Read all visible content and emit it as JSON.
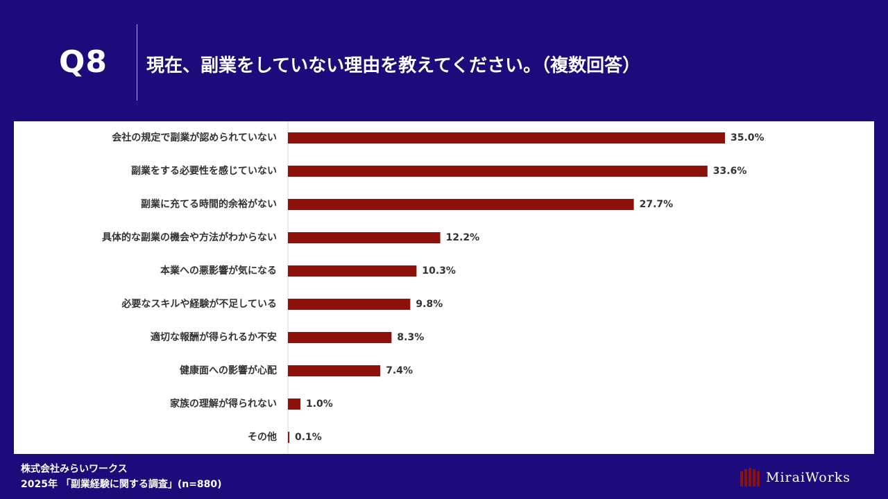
{
  "header": {
    "question_number": "Q8",
    "question_text": "現在、副業をしていない理由を教えてください。（複数回答）"
  },
  "chart_data": {
    "type": "bar",
    "orientation": "horizontal",
    "categories": [
      "会社の規定で副業が認められていない",
      "副業をする必要性を感じていない",
      "副業に充てる時間的余裕がない",
      "具体的な副業の機会や方法がわからない",
      "本業への悪影響が気になる",
      "必要なスキルや経験が不足している",
      "適切な報酬が得られるか不安",
      "健康面への影響が心配",
      "家族の理解が得られない",
      "その他"
    ],
    "values": [
      35.0,
      33.6,
      27.7,
      12.2,
      10.3,
      9.8,
      8.3,
      7.4,
      1.0,
      0.1
    ],
    "value_labels": [
      "35.0%",
      "33.6%",
      "27.7%",
      "12.2%",
      "10.3%",
      "9.8%",
      "8.3%",
      "7.4%",
      "1.0%",
      "0.1%"
    ],
    "xlim": [
      0,
      40
    ],
    "bar_color": "#8b110a",
    "grid": false
  },
  "footer": {
    "company": "株式会社みらいワークス",
    "survey": "2025年 「副業経験に関する調査」(n=880)"
  },
  "brand": {
    "name": "MiraiWorks",
    "mark_color": "#8b110a"
  },
  "colors": {
    "background": "#1d0a7b",
    "panel": "#ffffff",
    "bar": "#8b110a",
    "text": "#333333"
  }
}
